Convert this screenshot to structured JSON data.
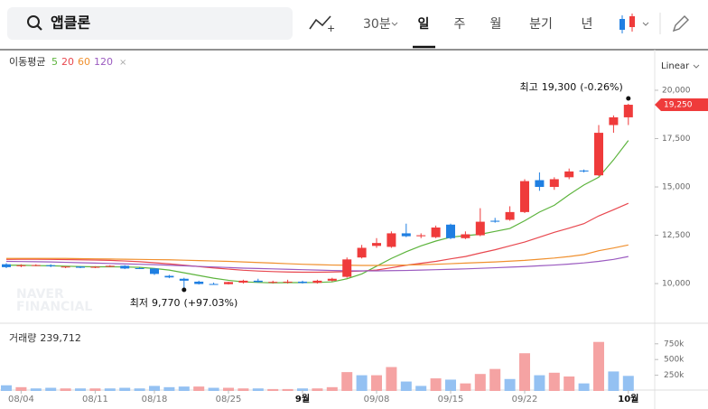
{
  "ui": {
    "search": "앱클론",
    "interval": "30분",
    "tabs": [
      "일",
      "주",
      "월",
      "분기",
      "년"
    ],
    "scale_mode": "Linear",
    "ma_title": "이동평균"
  },
  "chart_data": [
    {
      "type": "candlestick",
      "categories": [
        null,
        "08/04",
        null,
        null,
        null,
        null,
        "08/11",
        null,
        null,
        null,
        "08/18",
        null,
        null,
        null,
        null,
        "08/25",
        null,
        null,
        null,
        null,
        "9월",
        null,
        null,
        null,
        null,
        "09/08",
        null,
        null,
        null,
        null,
        "09/15",
        null,
        null,
        null,
        null,
        "09/22",
        null,
        null,
        null,
        null,
        null,
        null,
        "10월"
      ],
      "open": [
        11000,
        10900,
        10950,
        10950,
        10850,
        10880,
        10820,
        10870,
        10920,
        10800,
        10780,
        10400,
        10250,
        10100,
        9980,
        9970,
        10050,
        10150,
        10080,
        10060,
        10100,
        10040,
        10150,
        10350,
        11350,
        11950,
        11900,
        12600,
        12450,
        12400,
        13050,
        12350,
        12500,
        13250,
        13300,
        13700,
        15350,
        15000,
        15500,
        15850,
        15600,
        18200,
        18600
      ],
      "high": [
        11050,
        11000,
        11000,
        11000,
        10900,
        10900,
        10900,
        10950,
        10950,
        10850,
        10800,
        10450,
        10300,
        10150,
        10050,
        10100,
        10200,
        10250,
        10150,
        10200,
        10150,
        10200,
        10300,
        11350,
        12000,
        12350,
        12700,
        13100,
        12600,
        13000,
        13100,
        12700,
        13900,
        13400,
        14000,
        15400,
        15750,
        15500,
        15950,
        15900,
        18200,
        18700,
        19300
      ],
      "low": [
        10800,
        10850,
        10900,
        10850,
        10800,
        10800,
        10800,
        10850,
        10750,
        10750,
        10450,
        10280,
        9770,
        9950,
        9950,
        9950,
        10000,
        10050,
        10000,
        10000,
        10000,
        10000,
        10100,
        10300,
        11300,
        11850,
        11850,
        12400,
        12350,
        12350,
        12300,
        12300,
        12450,
        13150,
        13250,
        13650,
        14800,
        14850,
        15400,
        15750,
        15550,
        17800,
        18200
      ],
      "close": [
        10850,
        10950,
        10960,
        10900,
        10880,
        10820,
        10870,
        10920,
        10780,
        10770,
        10500,
        10320,
        10150,
        9980,
        9960,
        10080,
        10150,
        10080,
        10090,
        10100,
        10030,
        10150,
        10250,
        11250,
        11850,
        12100,
        12600,
        12450,
        12500,
        12900,
        12350,
        12550,
        13200,
        13200,
        13700,
        15300,
        15000,
        15400,
        15800,
        15800,
        17800,
        18600,
        19250
      ],
      "up_color": "#ef3b3b",
      "down_color": "#1f7fe2",
      "series": [
        {
          "name": "5",
          "color": "#5db43d",
          "values": [
            10950,
            10950,
            10930,
            10920,
            10900,
            10880,
            10870,
            10870,
            10860,
            10840,
            10780,
            10700,
            10560,
            10420,
            10280,
            10170,
            10090,
            10060,
            10040,
            10050,
            10050,
            10060,
            10090,
            10250,
            10500,
            10900,
            11300,
            11650,
            11950,
            12200,
            12400,
            12480,
            12550,
            12700,
            12850,
            13250,
            13700,
            14050,
            14600,
            15100,
            15500,
            16400,
            17400
          ]
        },
        {
          "name": "20",
          "color": "#e8484f",
          "values": [
            11250,
            11260,
            11260,
            11250,
            11240,
            11230,
            11220,
            11200,
            11170,
            11130,
            11080,
            11020,
            10950,
            10880,
            10810,
            10750,
            10690,
            10650,
            10620,
            10600,
            10590,
            10590,
            10600,
            10620,
            10650,
            10700,
            10820,
            10950,
            11050,
            11150,
            11280,
            11400,
            11580,
            11750,
            11950,
            12150,
            12400,
            12650,
            12870,
            13100,
            13500,
            13820,
            14150
          ]
        },
        {
          "name": "60",
          "color": "#f0902e",
          "values": [
            11300,
            11300,
            11300,
            11300,
            11300,
            11290,
            11280,
            11270,
            11260,
            11250,
            11240,
            11230,
            11210,
            11190,
            11170,
            11150,
            11120,
            11090,
            11060,
            11030,
            11000,
            10980,
            10960,
            10950,
            10940,
            10940,
            10950,
            10960,
            10980,
            11000,
            11030,
            11060,
            11090,
            11120,
            11160,
            11200,
            11260,
            11320,
            11400,
            11500,
            11700,
            11840,
            12000
          ]
        },
        {
          "name": "120",
          "color": "#9b5bc0",
          "values": [
            11150,
            11140,
            11130,
            11120,
            11100,
            11080,
            11060,
            11040,
            11020,
            11000,
            10980,
            10950,
            10920,
            10890,
            10860,
            10830,
            10800,
            10780,
            10760,
            10740,
            10720,
            10700,
            10680,
            10660,
            10660,
            10660,
            10670,
            10680,
            10700,
            10720,
            10740,
            10760,
            10790,
            10820,
            10850,
            10880,
            10920,
            10960,
            11010,
            11070,
            11150,
            11250,
            11400
          ]
        }
      ],
      "ylim": [
        7950,
        22100
      ],
      "yticks": [
        {
          "value": 10000,
          "label": "10,000"
        },
        {
          "value": 12500,
          "label": "12,500"
        },
        {
          "value": 15000,
          "label": "15,000"
        },
        {
          "value": 17500,
          "label": "17,500"
        },
        {
          "value": 20000,
          "label": "20,000"
        }
      ],
      "current_price": {
        "value": 19250,
        "label": "19,250"
      },
      "max_annotation": {
        "text": "최고",
        "label": "19,300",
        "change": "(-0.26%)"
      },
      "min_annotation": {
        "text": "최저",
        "label": "9,770",
        "change": "(+97.03%)"
      }
    },
    {
      "type": "bar",
      "title": "거래량",
      "last_label": "239,712",
      "values": [
        90000,
        60000,
        40000,
        50000,
        40000,
        40000,
        40000,
        40000,
        50000,
        40000,
        80000,
        60000,
        70000,
        70000,
        50000,
        50000,
        40000,
        40000,
        30000,
        30000,
        40000,
        40000,
        60000,
        300000,
        250000,
        250000,
        380000,
        150000,
        80000,
        200000,
        180000,
        120000,
        270000,
        350000,
        190000,
        600000,
        250000,
        290000,
        230000,
        120000,
        780000,
        310000,
        239712
      ],
      "colors": [
        "#94c1f2",
        "#f5a3a3",
        "#94c1f2",
        "#94c1f2",
        "#f5a3a3",
        "#94c1f2",
        "#f5a3a3",
        "#94c1f2",
        "#94c1f2",
        "#94c1f2",
        "#94c1f2",
        "#94c1f2",
        "#94c1f2",
        "#f5a3a3",
        "#94c1f2",
        "#f5a3a3",
        "#f5a3a3",
        "#94c1f2",
        "#f5a3a3",
        "#f5a3a3",
        "#94c1f2",
        "#f5a3a3",
        "#f5a3a3",
        "#f5a3a3",
        "#94c1f2",
        "#f5a3a3",
        "#f5a3a3",
        "#94c1f2",
        "#94c1f2",
        "#f5a3a3",
        "#94c1f2",
        "#f5a3a3",
        "#f5a3a3",
        "#f5a3a3",
        "#94c1f2",
        "#f5a3a3",
        "#94c1f2",
        "#f5a3a3",
        "#f5a3a3",
        "#94c1f2",
        "#f5a3a3",
        "#94c1f2",
        "#94c1f2"
      ],
      "ylim": [
        0,
        1020000
      ],
      "yticks": [
        {
          "value": 250000,
          "label": "250k"
        },
        {
          "value": 500000,
          "label": "500k"
        },
        {
          "value": 750000,
          "label": "750k"
        }
      ]
    }
  ]
}
